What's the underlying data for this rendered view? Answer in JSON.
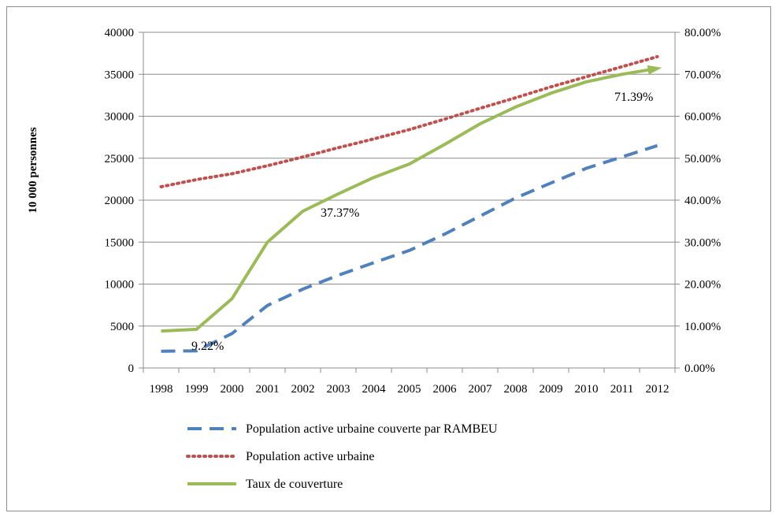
{
  "chart_data": {
    "type": "line",
    "categories": [
      "1998",
      "1999",
      "2000",
      "2001",
      "2002",
      "2003",
      "2004",
      "2005",
      "2006",
      "2007",
      "2008",
      "2009",
      "2010",
      "2011",
      "2012"
    ],
    "ylabel": "10 000 personnes",
    "ylim": [
      0,
      40000
    ],
    "y2lim": [
      0,
      0.8
    ],
    "yticks": [
      "0",
      "5000",
      "10000",
      "15000",
      "20000",
      "25000",
      "30000",
      "35000",
      "40000"
    ],
    "y2ticks": [
      "0.00%",
      "10.00%",
      "20.00%",
      "30.00%",
      "40.00%",
      "50.00%",
      "60.00%",
      "70.00%",
      "80.00%"
    ],
    "grid": true,
    "legend_position": "bottom",
    "series": [
      {
        "name": "Population active urbaine couverte par RAMBEU",
        "axis": "left",
        "color": "#4f81bd",
        "style": "dashed",
        "values": [
          2000,
          2050,
          4100,
          7450,
          9400,
          11050,
          12550,
          14000,
          15950,
          18100,
          20250,
          22050,
          23800,
          25150,
          26500
        ]
      },
      {
        "name": "Population active urbaine",
        "axis": "left",
        "color": "#c0504d",
        "style": "dotted",
        "values": [
          21600,
          22450,
          23150,
          24100,
          25150,
          26250,
          27300,
          28400,
          29650,
          30950,
          32200,
          33500,
          34700,
          35900,
          37100
        ]
      },
      {
        "name": "Taux de couverture",
        "axis": "right",
        "color": "#9bbb59",
        "style": "solid",
        "values": [
          0.088,
          0.0922,
          0.165,
          0.3,
          0.3737,
          0.415,
          0.454,
          0.486,
          0.533,
          0.582,
          0.622,
          0.655,
          0.682,
          0.7,
          0.7139
        ]
      }
    ],
    "annotations": [
      "9.22%",
      "37.37%",
      "71.39%"
    ]
  }
}
